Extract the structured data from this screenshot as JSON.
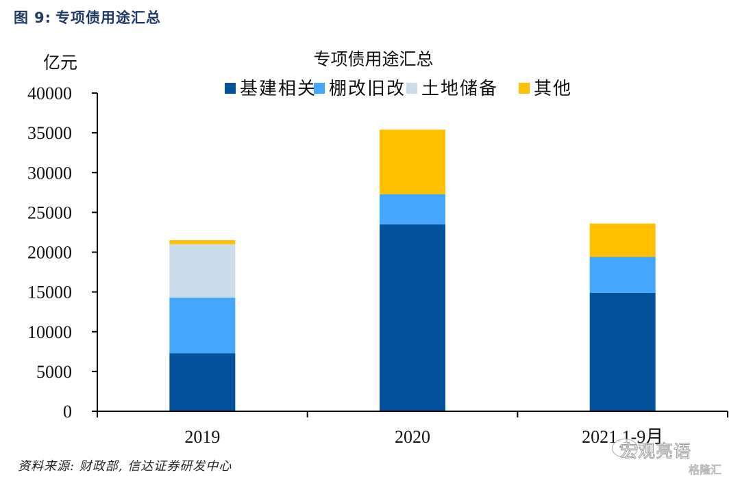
{
  "figure": {
    "label": "图",
    "number": "9:",
    "caption": "专项债用途汇总"
  },
  "source": "资料来源: 财政部, 信达证券研发中心",
  "watermarks": {
    "primary": "宏观亮语",
    "secondary": "格隆汇"
  },
  "chart_data": {
    "type": "bar",
    "stacked": true,
    "title": "专项债用途汇总",
    "ylabel": "亿元",
    "xlabel": "",
    "ylim": [
      0,
      40000
    ],
    "yticks": [
      0,
      5000,
      10000,
      15000,
      20000,
      25000,
      30000,
      35000,
      40000
    ],
    "grid": false,
    "legend_position": "top",
    "categories": [
      "2019",
      "2020",
      "2021 1-9月"
    ],
    "series": [
      {
        "name": "基建相关",
        "color": "#03519a",
        "values": [
          7300,
          23500,
          14900
        ]
      },
      {
        "name": "棚改旧改",
        "color": "#45a7fb",
        "values": [
          7000,
          3800,
          4500
        ]
      },
      {
        "name": "土地储备",
        "color": "#cbdcea",
        "values": [
          6700,
          0,
          0
        ]
      },
      {
        "name": "其他",
        "color": "#ffc000",
        "values": [
          500,
          8100,
          4200
        ]
      }
    ]
  }
}
